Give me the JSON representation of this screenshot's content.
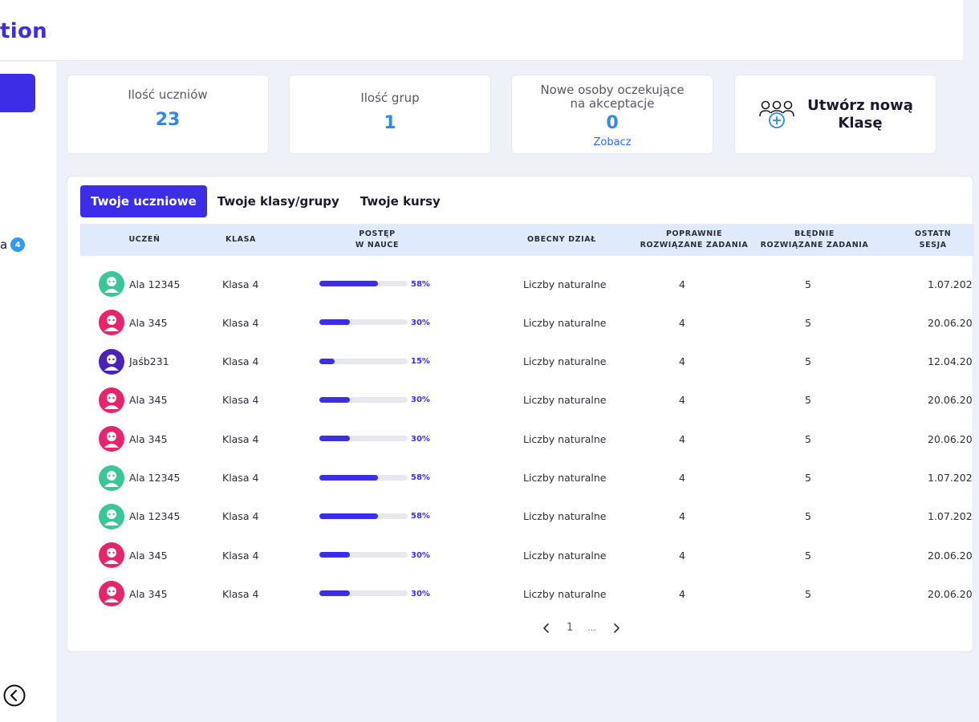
{
  "app": {
    "brand": "tion"
  },
  "sidebar": {
    "item_label": "a",
    "item_badge": "4"
  },
  "stats": {
    "students": {
      "label": "Ilość uczniów",
      "value": "23"
    },
    "groups": {
      "label": "Ilość grup",
      "value": "1"
    },
    "pending": {
      "label_line1": "Nowe osoby oczekujące",
      "label_line2": "na akceptacje",
      "value": "0",
      "link": "Zobacz"
    },
    "create_class": {
      "line1": "Utwórz nową",
      "line2": "Klasę"
    }
  },
  "tabs": [
    {
      "label": "Twoje uczniowe",
      "active": true
    },
    {
      "label": "Twoje klasy/grupy",
      "active": false
    },
    {
      "label": "Twoje kursy",
      "active": false
    }
  ],
  "table": {
    "headers": {
      "student": "UCZEŃ",
      "class": "KLASA",
      "progress_l1": "POSTĘP",
      "progress_l2": "W NAUCE",
      "section": "OBECNY DZIAŁ",
      "correct_l1": "POPRAWNIE",
      "correct_l2": "ROZWIĄZANE ZADANIA",
      "wrong_l1": "BŁĘDNIE",
      "wrong_l2": "ROZWIĄZANE ZADANIA",
      "last_l1": "OSTATN",
      "last_l2": "SESJA"
    },
    "rows": [
      {
        "name": "Ala 12345",
        "class": "Klasa 4",
        "progress": 58,
        "progress_label": "58%",
        "section": "Liczby naturalne",
        "correct": "4",
        "wrong": "5",
        "last": "1.07.202",
        "avatar": "green"
      },
      {
        "name": "Ala 345",
        "class": "Klasa 4",
        "progress": 30,
        "progress_label": "30%",
        "section": "Liczby naturalne",
        "correct": "4",
        "wrong": "5",
        "last": "20.06.20",
        "avatar": "pink"
      },
      {
        "name": "Jaśb231",
        "class": "Klasa 4",
        "progress": 15,
        "progress_label": "15%",
        "section": "Liczby naturalne",
        "correct": "4",
        "wrong": "5",
        "last": "12.04.20",
        "avatar": "purple"
      },
      {
        "name": "Ala 345",
        "class": "Klasa 4",
        "progress": 30,
        "progress_label": "30%",
        "section": "Liczby naturalne",
        "correct": "4",
        "wrong": "5",
        "last": "20.06.20",
        "avatar": "pink"
      },
      {
        "name": "Ala 345",
        "class": "Klasa 4",
        "progress": 30,
        "progress_label": "30%",
        "section": "Liczby naturalne",
        "correct": "4",
        "wrong": "5",
        "last": "20.06.20",
        "avatar": "pink"
      },
      {
        "name": "Ala 12345",
        "class": "Klasa 4",
        "progress": 58,
        "progress_label": "58%",
        "section": "Liczby naturalne",
        "correct": "4",
        "wrong": "5",
        "last": "1.07.202",
        "avatar": "green"
      },
      {
        "name": "Ala 12345",
        "class": "Klasa 4",
        "progress": 58,
        "progress_label": "58%",
        "section": "Liczby naturalne",
        "correct": "4",
        "wrong": "5",
        "last": "1.07.202",
        "avatar": "green"
      },
      {
        "name": "Ala 345",
        "class": "Klasa 4",
        "progress": 30,
        "progress_label": "30%",
        "section": "Liczby naturalne",
        "correct": "4",
        "wrong": "5",
        "last": "20.06.20",
        "avatar": "pink"
      },
      {
        "name": "Ala 345",
        "class": "Klasa 4",
        "progress": 30,
        "progress_label": "30%",
        "section": "Liczby naturalne",
        "correct": "4",
        "wrong": "5",
        "last": "20.06.20",
        "avatar": "pink"
      }
    ]
  },
  "pagination": {
    "page": "1",
    "ellipsis": "..."
  },
  "icons": {
    "create_class": "users-plus-icon",
    "back": "chevron-left-circle-icon",
    "prev": "chevron-left-icon",
    "next": "chevron-right-icon"
  },
  "colors": {
    "accent": "#3b2ee6",
    "value_blue": "#2f8ae8",
    "header_bg": "#dfeafc",
    "badge": "#2f9bf5",
    "avatar_green": "#3cc49a",
    "avatar_pink": "#e8246e",
    "avatar_purple": "#4b22b8"
  }
}
